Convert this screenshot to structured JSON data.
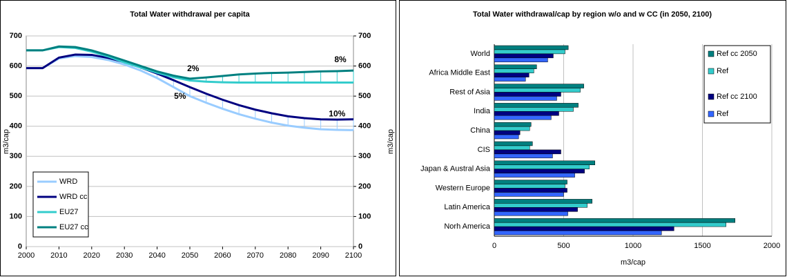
{
  "chart_data": [
    {
      "type": "line",
      "title": "Total Water withdrawal per capita",
      "x": [
        2000,
        2005,
        2010,
        2015,
        2020,
        2025,
        2030,
        2035,
        2040,
        2045,
        2050,
        2055,
        2060,
        2065,
        2070,
        2075,
        2080,
        2085,
        2090,
        2095,
        2100
      ],
      "series": [
        {
          "name": "WRD",
          "color": "#99ccff",
          "values": [
            593,
            593,
            625,
            633,
            630,
            620,
            605,
            585,
            560,
            530,
            500,
            478,
            458,
            440,
            425,
            412,
            402,
            395,
            390,
            388,
            387
          ]
        },
        {
          "name": "WRD cc",
          "color": "#000080",
          "values": [
            593,
            593,
            628,
            638,
            637,
            627,
            613,
            595,
            575,
            553,
            530,
            508,
            488,
            470,
            455,
            443,
            433,
            427,
            423,
            422,
            423
          ]
        },
        {
          "name": "EU27",
          "color": "#33cccc",
          "values": [
            652,
            652,
            663,
            660,
            648,
            632,
            612,
            595,
            578,
            563,
            552,
            548,
            546,
            545,
            545,
            545,
            545,
            545,
            545,
            545,
            545
          ]
        },
        {
          "name": "EU27 cc",
          "color": "#008080",
          "values": [
            652,
            652,
            665,
            663,
            652,
            636,
            618,
            600,
            582,
            568,
            558,
            562,
            567,
            572,
            575,
            577,
            578,
            580,
            582,
            583,
            585
          ]
        }
      ],
      "xlim": [
        2000,
        2100
      ],
      "xticks": [
        2000,
        2010,
        2020,
        2030,
        2040,
        2050,
        2060,
        2070,
        2080,
        2090,
        2100
      ],
      "ylim": [
        0,
        700
      ],
      "yticks": [
        0,
        100,
        200,
        300,
        400,
        500,
        600,
        700
      ],
      "y2lim": [
        0,
        700
      ],
      "y2ticks": [
        0,
        100,
        200,
        300,
        400,
        500,
        600,
        700
      ],
      "ylabel": "m3/cap",
      "y2label": "m3/cap",
      "grid": true,
      "legend": "lower left",
      "annotations": [
        {
          "text": "2%",
          "x": 2051,
          "y": 590,
          "color": "#339933"
        },
        {
          "text": "5%",
          "x": 2047,
          "y": 498,
          "color": "#333399"
        },
        {
          "text": "10%",
          "x": 2095,
          "y": 440,
          "color": "#333399"
        },
        {
          "text": "8%",
          "x": 2096,
          "y": 620,
          "color": "#339933"
        }
      ]
    },
    {
      "type": "hbar",
      "title": "Total Water withdrawal/cap by region w/o and w CC (in 2050, 2100)",
      "categories": [
        "World",
        "Africa Middle East",
        "Rest of Asia",
        "India",
        "China",
        "CIS",
        "Japan & Austral Asia",
        "Western Europe",
        "Latin America",
        "Norh America"
      ],
      "series": [
        {
          "name": "Ref cc 2050",
          "color": "#008080",
          "values": [
            533,
            305,
            645,
            605,
            265,
            275,
            725,
            525,
            705,
            1735
          ]
        },
        {
          "name": "Ref",
          "color": "#33cccc",
          "values": [
            510,
            285,
            620,
            570,
            255,
            255,
            685,
            510,
            670,
            1670
          ]
        },
        {
          "name": "Ref cc 2100",
          "color": "#000080",
          "values": [
            425,
            250,
            480,
            465,
            185,
            480,
            650,
            525,
            600,
            1295
          ]
        },
        {
          "name": "Ref",
          "color": "#3366ff",
          "values": [
            385,
            225,
            450,
            410,
            175,
            420,
            580,
            500,
            530,
            1205
          ]
        }
      ],
      "xlim": [
        0,
        2000
      ],
      "xticks": [
        0,
        500,
        1000,
        1500,
        2000
      ],
      "xlabel": "m3/cap",
      "grid": true,
      "legend": "upper right"
    }
  ]
}
